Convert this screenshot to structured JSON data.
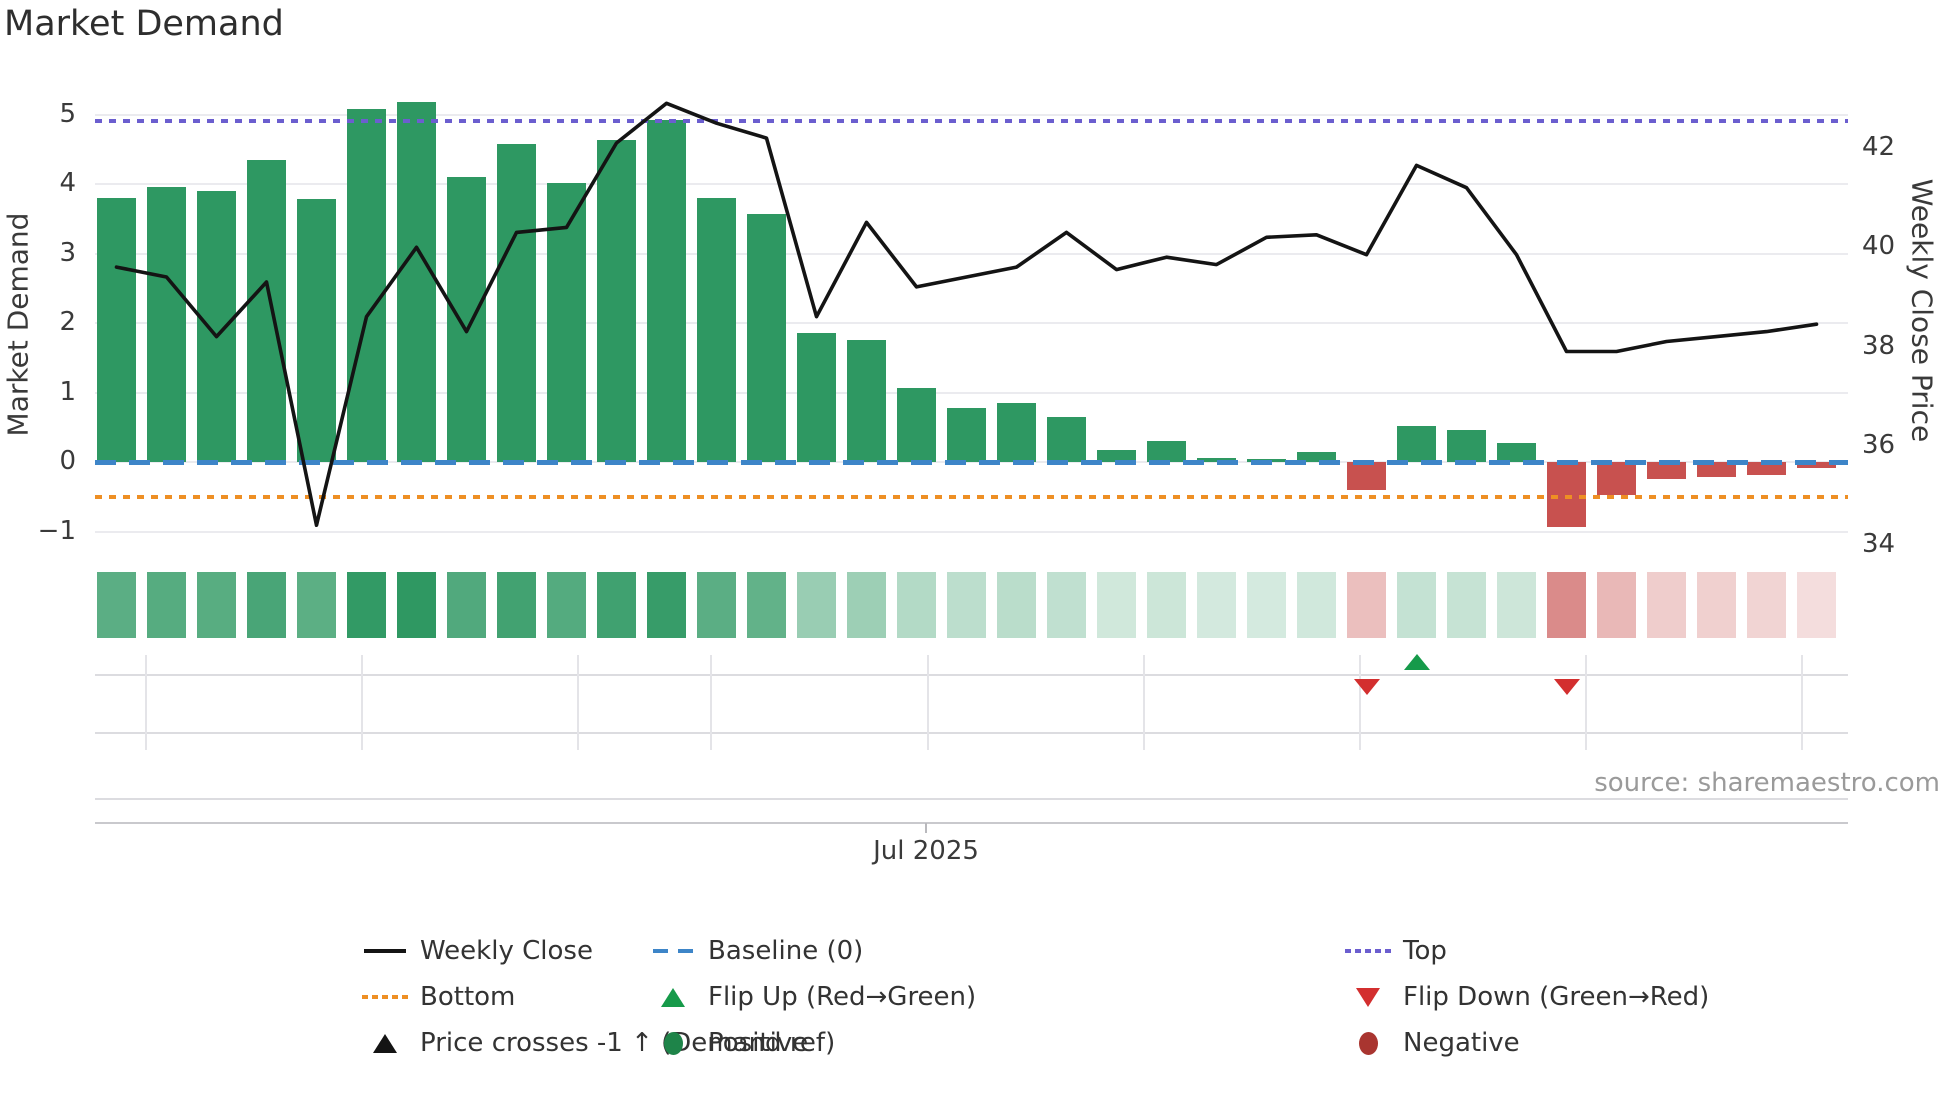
{
  "title": "Market Demand",
  "source_credit": "source: sharemaestro.com",
  "left_axis": {
    "label": "Market Demand",
    "ticks": [
      "5",
      "4",
      "3",
      "2",
      "1",
      "0",
      "−1"
    ],
    "tick_values": [
      5,
      4,
      3,
      2,
      1,
      0,
      -1
    ]
  },
  "right_axis": {
    "label": "Weekly Close Price",
    "ticks": [
      "42",
      "40",
      "38",
      "36",
      "34"
    ],
    "tick_values": [
      42,
      40,
      38,
      36,
      34
    ]
  },
  "x_axis": {
    "visible_tick_label": "Jul 2025"
  },
  "colors": {
    "bar_positive": "#2E9862",
    "bar_negative": "#C8514F",
    "price_line": "#141414",
    "baseline": "#3D85C8",
    "top_line": "#6B5ECF",
    "bottom_line": "#EE8F24",
    "flip_up": "#169A4A",
    "flip_down": "#D32F2F",
    "positive_dot": "#1E8449",
    "negative_dot": "#A93530"
  },
  "legend": [
    {
      "label": "Weekly Close",
      "swatch": "line",
      "color": "#141414",
      "col": 0,
      "row": 0
    },
    {
      "label": "Baseline (0)",
      "swatch": "dash",
      "color": "#3D85C8",
      "col": 1,
      "row": 0
    },
    {
      "label": "Top",
      "swatch": "dots",
      "color": "#6B5ECF",
      "col": 2,
      "row": 0
    },
    {
      "label": "Bottom",
      "swatch": "dots",
      "color": "#EE8F24",
      "col": 0,
      "row": 1
    },
    {
      "label": "Flip Up (Red→Green)",
      "swatch": "tri-up",
      "color": "#169A4A",
      "col": 1,
      "row": 1
    },
    {
      "label": "Flip Down (Green→Red)",
      "swatch": "tri-down",
      "color": "#D32F2F",
      "col": 2,
      "row": 1
    },
    {
      "label": "Price crosses -1 ↑ (Demand ref)",
      "swatch": "tri-up",
      "color": "#141414",
      "col": 0,
      "row": 2
    },
    {
      "label": "Positive",
      "swatch": "circle",
      "color": "#1E8449",
      "col": 1,
      "row": 2
    },
    {
      "label": "Negative",
      "swatch": "circle",
      "color": "#A93530",
      "col": 2,
      "row": 2
    }
  ],
  "chart_data": {
    "type": "combo (bar + line + heatmap strip + event markers)",
    "x": "35 consecutive weeks (only month tick \"Jul 2025\" labeled, at week 17)",
    "week_index": [
      1,
      2,
      3,
      4,
      5,
      6,
      7,
      8,
      9,
      10,
      11,
      12,
      13,
      14,
      15,
      16,
      17,
      18,
      19,
      20,
      21,
      22,
      23,
      24,
      25,
      26,
      27,
      28,
      29,
      30,
      31,
      32,
      33,
      34,
      35
    ],
    "series": [
      {
        "name": "Market Demand",
        "type": "bar",
        "axis": "left",
        "values": [
          3.8,
          3.95,
          3.9,
          4.35,
          3.78,
          5.08,
          5.18,
          4.1,
          4.57,
          4.02,
          4.63,
          4.92,
          3.8,
          3.57,
          1.86,
          1.76,
          1.06,
          0.78,
          0.85,
          0.65,
          0.17,
          0.3,
          0.06,
          0.04,
          0.15,
          -0.4,
          0.52,
          0.46,
          0.27,
          -0.94,
          -0.47,
          -0.25,
          -0.22,
          -0.18,
          -0.08
        ]
      },
      {
        "name": "Weekly Close",
        "type": "line",
        "axis": "right",
        "values": [
          39.6,
          39.4,
          38.2,
          39.3,
          34.4,
          38.6,
          40.0,
          38.3,
          40.3,
          40.4,
          42.1,
          42.9,
          42.5,
          42.2,
          38.6,
          40.5,
          39.2,
          39.4,
          39.6,
          40.3,
          39.55,
          39.8,
          39.65,
          40.2,
          40.25,
          39.85,
          41.65,
          41.2,
          39.85,
          37.9,
          37.9,
          38.1,
          38.2,
          38.3,
          38.45
        ]
      }
    ],
    "reference_lines": {
      "baseline": 0,
      "top": 4.9,
      "bottom": -0.5
    },
    "markers": {
      "flip_up_weeks": [
        27
      ],
      "flip_down_weeks": [
        26,
        30
      ],
      "price_crosses_minus1_weeks": []
    },
    "heatmap_strip": "per-week cell tinted by Market Demand value (green intensity for positive, red intensity for negative)",
    "left_ylim": [
      -1.42,
      5.42
    ],
    "right_ylim": [
      33.72,
      43.27
    ],
    "grid": "horizontal light gridlines at left-axis integers; faint monthly verticals in marker rows"
  }
}
